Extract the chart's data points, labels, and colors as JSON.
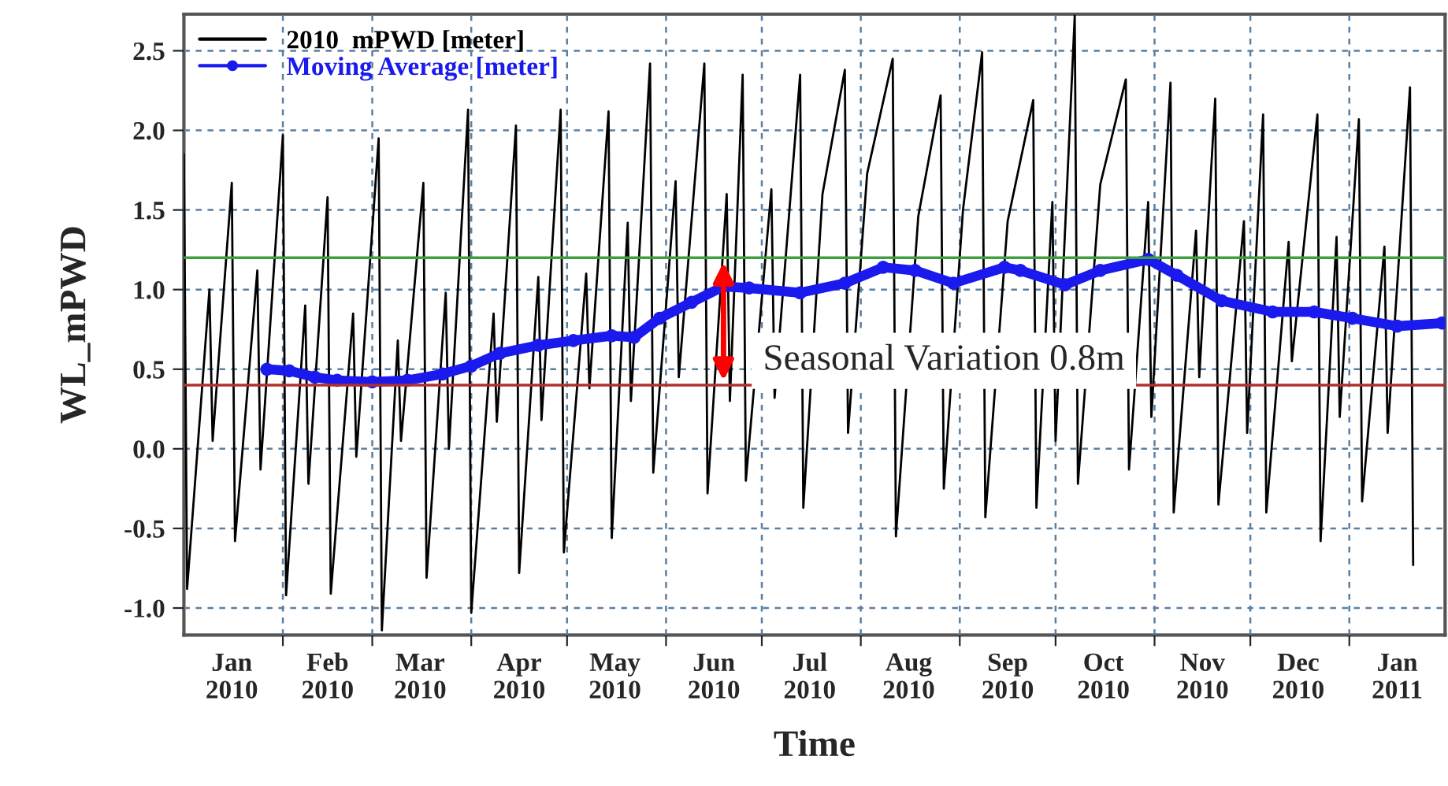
{
  "chart_data": {
    "type": "line",
    "xlabel": "Time",
    "ylabel": "WL_mPWD",
    "xlim": [
      "2010-01-01",
      "2011-01-31"
    ],
    "ylim": [
      -1.17,
      2.73
    ],
    "xticks": [
      {
        "value": "2010-02-01",
        "label": null
      },
      {
        "value": "2010-03-01",
        "label": null
      },
      {
        "value": "2010-04-01",
        "label": null
      },
      {
        "value": "2010-05-01",
        "label": null
      },
      {
        "value": "2010-06-01",
        "label": null
      },
      {
        "value": "2010-07-01",
        "label": null
      },
      {
        "value": "2010-08-01",
        "label": null
      },
      {
        "value": "2010-09-01",
        "label": null
      },
      {
        "value": "2010-10-01",
        "label": null
      },
      {
        "value": "2010-11-01",
        "label": null
      },
      {
        "value": "2010-12-01",
        "label": null
      },
      {
        "value": "2011-01-01",
        "label": null
      },
      {
        "value": "2010-01-16",
        "label": "Jan\n2010"
      },
      {
        "value": "2010-02-15",
        "label": "Feb\n2010"
      },
      {
        "value": "2010-03-16",
        "label": "Mar\n2010"
      },
      {
        "value": "2010-04-16",
        "label": "Apr\n2010"
      },
      {
        "value": "2010-05-16",
        "label": "May\n2010"
      },
      {
        "value": "2010-06-16",
        "label": "Jun\n2010"
      },
      {
        "value": "2010-07-16",
        "label": "Jul\n2010"
      },
      {
        "value": "2010-08-16",
        "label": "Aug\n2010"
      },
      {
        "value": "2010-09-16",
        "label": "Sep\n2010"
      },
      {
        "value": "2010-10-16",
        "label": "Oct\n2010"
      },
      {
        "value": "2010-11-16",
        "label": "Nov\n2010"
      },
      {
        "value": "2010-12-16",
        "label": "Dec\n2010"
      },
      {
        "value": "2011-01-16",
        "label": "Jan\n2011"
      }
    ],
    "yticks": [
      {
        "value": -1.0,
        "label": "-1.0"
      },
      {
        "value": -0.5,
        "label": "-0.5"
      },
      {
        "value": 0.0,
        "label": "0.0"
      },
      {
        "value": 0.5,
        "label": "0.5"
      },
      {
        "value": 1.0,
        "label": "1.0"
      },
      {
        "value": 1.5,
        "label": "1.5"
      },
      {
        "value": 2.0,
        "label": "2.0"
      },
      {
        "value": 2.5,
        "label": "2.5"
      }
    ],
    "grid": true,
    "legend": "top left",
    "ref_lines": [
      {
        "axis": "y",
        "value": 1.2,
        "label": null,
        "color": "#3f9f3f"
      },
      {
        "axis": "y",
        "value": 0.4,
        "label": null,
        "color": "#b03030"
      }
    ],
    "annotations": [
      {
        "text": "Seasonal Variation 0.8m",
        "x": "2010-06-19",
        "y": 0.8
      }
    ],
    "series": [
      {
        "name": "2010  mPWD [meter]",
        "color": "#000000",
        "marker": "none",
        "x": [
          "2010-01-01",
          "2010-01-02",
          "2010-01-09",
          "2010-01-10",
          "2010-01-16",
          "2010-01-17",
          "2010-01-24",
          "2010-01-25",
          "2010-02-01",
          "2010-02-02",
          "2010-02-08",
          "2010-02-09",
          "2010-02-15",
          "2010-02-16",
          "2010-02-23",
          "2010-02-24",
          "2010-03-03",
          "2010-03-04",
          "2010-03-09",
          "2010-03-10",
          "2010-03-17",
          "2010-03-18",
          "2010-03-24",
          "2010-03-25",
          "2010-03-31",
          "2010-04-01",
          "2010-04-08",
          "2010-04-09",
          "2010-04-15",
          "2010-04-16",
          "2010-04-22",
          "2010-04-23",
          "2010-04-29",
          "2010-04-30",
          "2010-05-07",
          "2010-05-08",
          "2010-05-14",
          "2010-05-15",
          "2010-05-20",
          "2010-05-21",
          "2010-05-27",
          "2010-05-28",
          "2010-06-04",
          "2010-06-05",
          "2010-06-13",
          "2010-06-14",
          "2010-06-20",
          "2010-06-21",
          "2010-06-25",
          "2010-06-26",
          "2010-07-04",
          "2010-07-05",
          "2010-07-13",
          "2010-07-14",
          "2010-07-20",
          "2010-07-27",
          "2010-07-28",
          "2010-08-03",
          "2010-08-11",
          "2010-08-12",
          "2010-08-19",
          "2010-08-26",
          "2010-08-27",
          "2010-09-02",
          "2010-09-08",
          "2010-09-09",
          "2010-09-16",
          "2010-09-24",
          "2010-09-25",
          "2010-09-30",
          "2010-10-01",
          "2010-10-07",
          "2010-10-08",
          "2010-10-15",
          "2010-10-23",
          "2010-10-24",
          "2010-10-30",
          "2010-10-31",
          "2010-11-06",
          "2010-11-07",
          "2010-11-14",
          "2010-11-15",
          "2010-11-20",
          "2010-11-21",
          "2010-11-29",
          "2010-11-30",
          "2010-12-05",
          "2010-12-06",
          "2010-12-13",
          "2010-12-14",
          "2010-12-22",
          "2010-12-23",
          "2010-12-28",
          "2010-12-29",
          "2011-01-04",
          "2011-01-05",
          "2011-01-12",
          "2011-01-13",
          "2011-01-20",
          "2011-01-21"
        ],
        "values": [
          1.85,
          -0.88,
          1.0,
          0.05,
          1.67,
          -0.58,
          1.12,
          -0.13,
          1.97,
          -0.92,
          0.9,
          -0.22,
          1.58,
          -0.91,
          0.85,
          -0.05,
          1.95,
          -1.14,
          0.68,
          0.05,
          1.67,
          -0.81,
          0.98,
          0.0,
          2.13,
          -1.03,
          0.85,
          0.17,
          2.03,
          -0.78,
          1.08,
          0.18,
          2.13,
          -0.65,
          1.1,
          0.38,
          2.12,
          -0.56,
          1.42,
          0.3,
          2.42,
          -0.15,
          1.68,
          0.45,
          2.42,
          -0.28,
          1.6,
          0.3,
          2.35,
          -0.2,
          1.63,
          0.32,
          2.35,
          -0.37,
          1.6,
          2.38,
          0.1,
          1.73,
          2.45,
          -0.55,
          1.46,
          2.22,
          -0.25,
          1.5,
          2.49,
          -0.43,
          1.43,
          2.19,
          -0.37,
          1.55,
          0.05,
          2.72,
          -0.22,
          1.66,
          2.32,
          -0.13,
          1.55,
          0.2,
          2.3,
          -0.4,
          1.37,
          0.45,
          2.2,
          -0.35,
          1.43,
          0.1,
          2.1,
          -0.4,
          1.3,
          0.55,
          2.1,
          -0.58,
          1.33,
          0.2,
          2.07,
          -0.33,
          1.27,
          0.1,
          2.27,
          -0.73
        ]
      },
      {
        "name": "Moving Average [meter]",
        "color": "#1a1aee",
        "marker": "circle",
        "x": [
          "2010-01-27",
          "2010-02-03",
          "2010-02-11",
          "2010-02-18",
          "2010-03-01",
          "2010-03-12",
          "2010-03-23",
          "2010-04-01",
          "2010-04-10",
          "2010-04-22",
          "2010-05-03",
          "2010-05-15",
          "2010-05-22",
          "2010-05-30",
          "2010-06-09",
          "2010-06-19",
          "2010-06-27",
          "2010-07-13",
          "2010-07-27",
          "2010-08-08",
          "2010-08-18",
          "2010-08-30",
          "2010-09-15",
          "2010-09-20",
          "2010-10-04",
          "2010-10-15",
          "2010-10-30",
          "2010-11-08",
          "2010-11-22",
          "2010-12-08",
          "2010-12-21",
          "2011-01-02",
          "2011-01-16",
          "2011-01-30"
        ],
        "values": [
          0.5,
          0.49,
          0.45,
          0.43,
          0.42,
          0.43,
          0.47,
          0.52,
          0.6,
          0.65,
          0.68,
          0.71,
          0.7,
          0.82,
          0.92,
          1.02,
          1.01,
          0.98,
          1.04,
          1.14,
          1.12,
          1.04,
          1.14,
          1.12,
          1.03,
          1.12,
          1.19,
          1.09,
          0.93,
          0.86,
          0.86,
          0.82,
          0.77,
          0.79
        ]
      }
    ]
  }
}
